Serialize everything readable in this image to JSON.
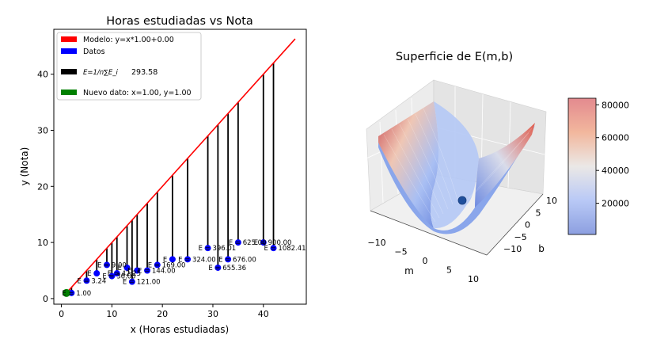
{
  "colors": {
    "model": "#ff0000",
    "data": "#0000ff",
    "error": "#000000",
    "new": "#008000"
  },
  "chart_data": [
    {
      "type": "scatter",
      "title": "Horas estudiadas vs Nota",
      "xlabel": "x (Horas estudiadas)",
      "ylabel": "y (Nota)",
      "xlim": [
        -1.5,
        48.5
      ],
      "ylim": [
        -1,
        48
      ],
      "xticks": [
        0,
        10,
        20,
        30,
        40
      ],
      "yticks": [
        0,
        10,
        20,
        30,
        40
      ],
      "grid": false,
      "legend_position": "top-left",
      "legend": {
        "model": "Modelo: y=x*1.00+0.00",
        "data": "Datos",
        "error_formula": "E=1/n∑E_i",
        "error_value": "293.58",
        "new": "Nuevo dato: x=1.00, y=1.00"
      },
      "model_line": {
        "x": [
          1,
          46.3
        ],
        "y": [
          1,
          46.3
        ]
      },
      "points": [
        {
          "x": 2,
          "y": 1,
          "label": "E = 1.00"
        },
        {
          "x": 5,
          "y": 3.2,
          "label": "E = 3.24"
        },
        {
          "x": 7,
          "y": 4.5,
          "label": "E"
        },
        {
          "x": 9,
          "y": 6,
          "label": "E = 9.00"
        },
        {
          "x": 10,
          "y": 4,
          "label": "E = 36.00"
        },
        {
          "x": 11,
          "y": 4.5,
          "label": "E = 42.25"
        },
        {
          "x": 13,
          "y": 5.5,
          "label": "E"
        },
        {
          "x": 14,
          "y": 3,
          "label": "E = 121.00"
        },
        {
          "x": 15,
          "y": 5,
          "label": "E"
        },
        {
          "x": 17,
          "y": 5,
          "label": "E = 144.00"
        },
        {
          "x": 19,
          "y": 6,
          "label": "E = 169.00"
        },
        {
          "x": 22,
          "y": 7,
          "label": "E"
        },
        {
          "x": 25,
          "y": 7,
          "label": "E = 324.00"
        },
        {
          "x": 29,
          "y": 9,
          "label": "E = 396.01"
        },
        {
          "x": 31,
          "y": 5.5,
          "label": "E = 655.36"
        },
        {
          "x": 33,
          "y": 7,
          "label": "E = 676.00"
        },
        {
          "x": 35,
          "y": 10,
          "label": "E = 625.00"
        },
        {
          "x": 40,
          "y": 10,
          "label": "E = 900.00"
        },
        {
          "x": 42,
          "y": 9,
          "label": "E = 1082.41"
        }
      ],
      "new_point": {
        "x": 1,
        "y": 1
      }
    },
    {
      "type": "surface",
      "title": "Superficie de E(m,b)",
      "xlabel": "m",
      "ylabel": "b",
      "m_ticks": [
        "−10",
        "−5",
        "0",
        "5",
        "10"
      ],
      "b_ticks": [
        "−10",
        "−5",
        "0",
        "5",
        "10"
      ],
      "colorbar_ticks": [
        20000,
        40000,
        60000,
        80000
      ],
      "colorbar_range": [
        1000,
        84000
      ],
      "colormap": "coolwarm"
    }
  ]
}
